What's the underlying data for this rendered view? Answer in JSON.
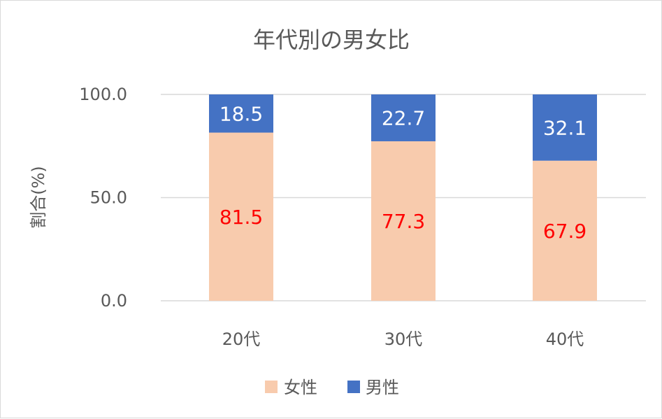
{
  "chart_data": {
    "type": "bar",
    "stacked": true,
    "title": "年代別の男女比",
    "ylabel": "割合(%)",
    "xlabel": "",
    "ylim": [
      0,
      100
    ],
    "yticks": [
      "0.0",
      "50.0",
      "100.0"
    ],
    "categories": [
      "20代",
      "30代",
      "40代"
    ],
    "series": [
      {
        "name": "女性",
        "values": [
          81.5,
          77.3,
          67.9
        ],
        "color": "#F8CBAD",
        "label_color": "#FF0000"
      },
      {
        "name": "男性",
        "values": [
          18.5,
          22.7,
          32.1
        ],
        "color": "#4472C4",
        "label_color": "#FFFFFF"
      }
    ],
    "data_labels": {
      "女性": [
        "81.5",
        "77.3",
        "67.9"
      ],
      "男性": [
        "18.5",
        "22.7",
        "32.1"
      ]
    },
    "grid": true,
    "legend": "bottom",
    "gridline_color": "#D9D9D9",
    "text_color": "#595959"
  }
}
